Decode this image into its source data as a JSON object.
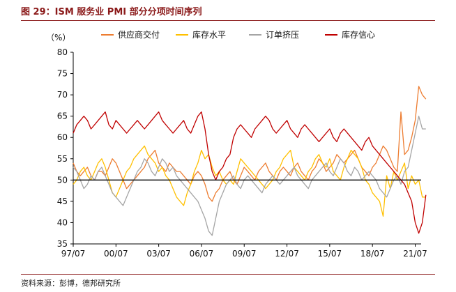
{
  "figure": {
    "title": "图 29：ISM 服务业 PMI 部分分项时间序列",
    "source": "资料来源：彭博，德邦研究所"
  },
  "colors": {
    "supplier": "#ed7d31",
    "inventory": "#ffc000",
    "backlog": "#a5a5a5",
    "sentiment": "#c00000",
    "title": "#8b1a1a",
    "axis": "#000000"
  },
  "chart_data": {
    "type": "line",
    "unit_label": "（%）",
    "ylim": [
      35,
      80
    ],
    "yticks": [
      35,
      40,
      45,
      50,
      55,
      60,
      65,
      70,
      75,
      80
    ],
    "xlim": [
      "1997-07",
      "2021-12"
    ],
    "xticks": [
      "97/07",
      "00/07",
      "03/07",
      "06/07",
      "09/07",
      "12/07",
      "15/07",
      "18/07",
      "21/07"
    ],
    "reference_line": 50,
    "grid": false,
    "legend_position": "top",
    "series_step": "quarterly, starting 1997-07",
    "series": [
      {
        "name": "供应商交付",
        "key": "supplier",
        "values": [
          54,
          52,
          51,
          52,
          53,
          51,
          50,
          52,
          52,
          51,
          53,
          55,
          54,
          52,
          50,
          48,
          49,
          50,
          51,
          52,
          53,
          55,
          56,
          57,
          54,
          53,
          52,
          54,
          53,
          52,
          52,
          51,
          50,
          49,
          51,
          52,
          51,
          49,
          46,
          45,
          47,
          48,
          50,
          51,
          52,
          50,
          49,
          51,
          53,
          52,
          51,
          50,
          52,
          53,
          54,
          52,
          51,
          50,
          52,
          53,
          52,
          51,
          53,
          54,
          52,
          51,
          50,
          52,
          53,
          55,
          54,
          52,
          53,
          54,
          56,
          55,
          54,
          55,
          56,
          57,
          55,
          53,
          52,
          51,
          53,
          54,
          56,
          58,
          57,
          55,
          53,
          52,
          66,
          56,
          57,
          60,
          64,
          72,
          70,
          69
        ]
      },
      {
        "name": "库存水平",
        "key": "inventory",
        "values": [
          49,
          50,
          52,
          53,
          51,
          50,
          52,
          54,
          55,
          53,
          50,
          47,
          46,
          48,
          50,
          52,
          53,
          55,
          56,
          57,
          58,
          56,
          55,
          54,
          52,
          53,
          51,
          50,
          48,
          46,
          45,
          44,
          47,
          49,
          52,
          54,
          57,
          55,
          56,
          53,
          51,
          52,
          50,
          49,
          50,
          49,
          52,
          55,
          54,
          53,
          52,
          51,
          50,
          49,
          48,
          49,
          50,
          52,
          53,
          55,
          56,
          57,
          53,
          52,
          51,
          50,
          52,
          53,
          55,
          56,
          54,
          53,
          55,
          52,
          51,
          50,
          53,
          55,
          57,
          56,
          55,
          53,
          50,
          49,
          47,
          46,
          45,
          41.5,
          51,
          48,
          52,
          50,
          52,
          54,
          48,
          51,
          49,
          50,
          46,
          46
        ]
      },
      {
        "name": "订单挤压",
        "key": "backlog",
        "values": [
          53,
          52,
          50,
          48,
          49,
          51,
          50,
          52,
          53,
          51,
          49,
          47,
          46,
          45,
          44,
          46,
          48,
          50,
          52,
          53,
          55,
          54,
          52,
          51,
          53,
          55,
          54,
          52,
          53,
          51,
          50,
          49,
          48,
          47,
          46,
          45,
          43,
          41,
          38,
          37,
          41,
          45,
          47,
          49,
          50,
          51,
          49,
          48,
          50,
          51,
          50,
          49,
          48,
          47,
          49,
          50,
          51,
          50,
          49,
          50,
          51,
          52,
          53,
          51,
          50,
          49,
          48,
          50,
          51,
          52,
          53,
          54,
          52,
          51,
          53,
          55,
          54,
          52,
          51,
          53,
          52,
          50,
          51,
          52,
          51,
          50,
          48,
          47,
          46,
          48,
          50,
          51,
          49,
          52,
          53,
          57,
          61,
          65,
          62,
          62
        ]
      },
      {
        "name": "库存信心",
        "key": "sentiment",
        "values": [
          61,
          63,
          64,
          65,
          64,
          62,
          63,
          64,
          65,
          66,
          63,
          62,
          64,
          63,
          62,
          61,
          62,
          63,
          64,
          63,
          62,
          63,
          64,
          65,
          66,
          64,
          63,
          62,
          61,
          62,
          63,
          64,
          62,
          61,
          63,
          65,
          66,
          62,
          56,
          52,
          50,
          52,
          53,
          55,
          56,
          60,
          62,
          63,
          62,
          61,
          60,
          62,
          63,
          64,
          65,
          64,
          62,
          61,
          62,
          63,
          64,
          62,
          61,
          60,
          62,
          63,
          62,
          61,
          60,
          59,
          60,
          61,
          62,
          60,
          59,
          61,
          62,
          61,
          60,
          59,
          58,
          57,
          59,
          60,
          58,
          57,
          56,
          55,
          54,
          53,
          52,
          51,
          50,
          49,
          47,
          45,
          40,
          37.5,
          40,
          46.5
        ]
      }
    ]
  }
}
